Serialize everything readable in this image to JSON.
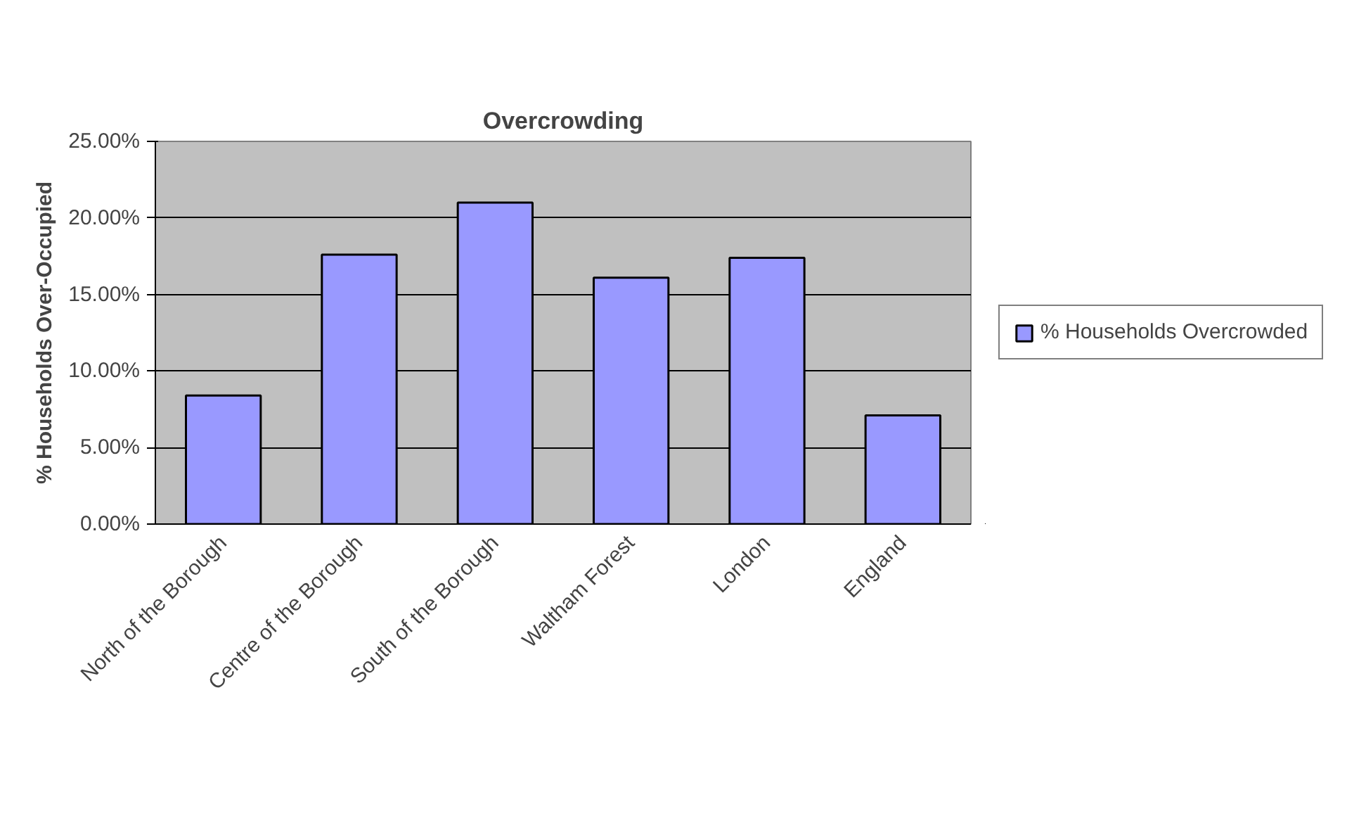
{
  "chart_data": {
    "type": "bar",
    "title": "Overcrowding",
    "ylabel": "% Households Over-Occupied",
    "categories": [
      "North of the Borough",
      "Centre of the Borough",
      "South of the Borough",
      "Waltham Forest",
      "London",
      "England"
    ],
    "series": [
      {
        "name": "% Households Overcrowded",
        "color": "#9999ff",
        "values": [
          8.4,
          17.6,
          21.0,
          16.1,
          17.4,
          7.1
        ]
      }
    ],
    "ylim": [
      0,
      25
    ],
    "yticks": [
      {
        "value": 0,
        "label": "0.00%"
      },
      {
        "value": 5,
        "label": "5.00%"
      },
      {
        "value": 10,
        "label": "10.00%"
      },
      {
        "value": 15,
        "label": "15.00%"
      },
      {
        "value": 20,
        "label": "20.00%"
      },
      {
        "value": 25,
        "label": "25.00%"
      }
    ],
    "grid": "y",
    "legend": "right"
  }
}
